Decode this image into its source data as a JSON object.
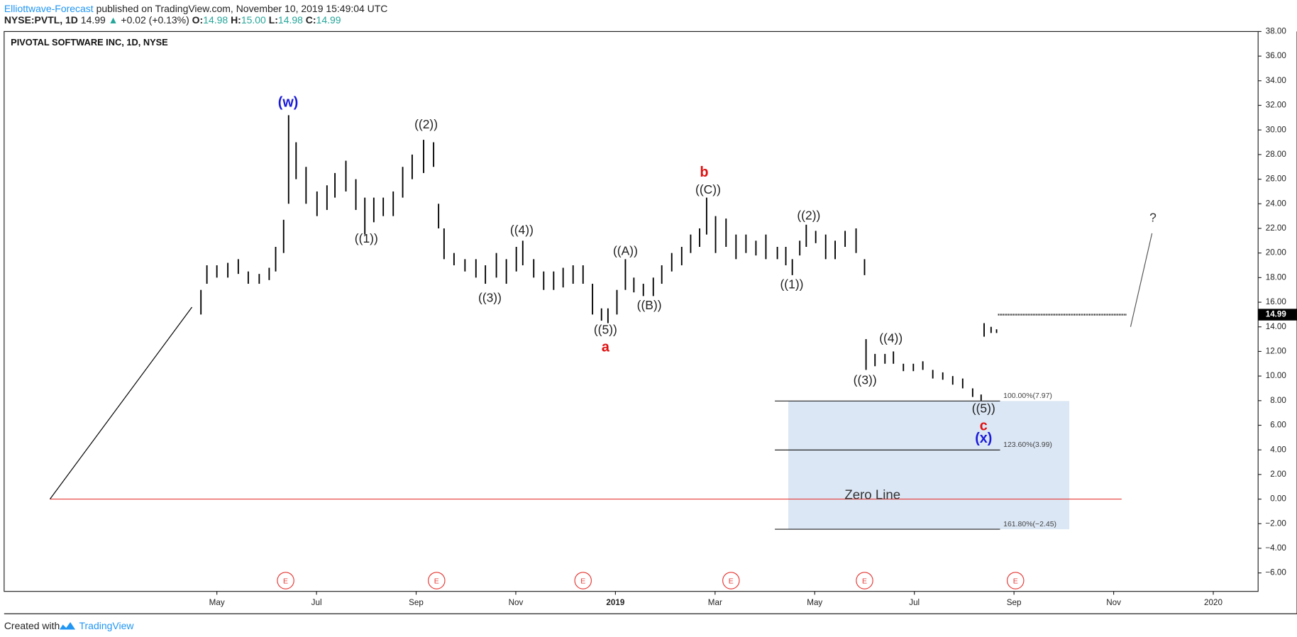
{
  "header": {
    "publisher": "Elliottwave-Forecast",
    "published": "published on TradingView.com, November 10, 2019 15:49:04 UTC",
    "symbol": "NYSE:PVTL, 1D",
    "last": "14.99",
    "arrow": "▲",
    "change": "+0.02 (+0.13%)",
    "o_label": "O:",
    "o": "14.98",
    "h_label": "H:",
    "h": "15.00",
    "l_label": "L:",
    "l": "14.98",
    "c_label": "C:",
    "c": "14.99"
  },
  "footer": {
    "created": "Created with",
    "brand": "TradingView"
  },
  "chart_data": {
    "type": "ohlc",
    "title": "PIVOTAL SOFTWARE INC, 1D, NYSE",
    "color": "#000000",
    "x": [
      3.68,
      3.8,
      4.0,
      4.22,
      4.43,
      4.63,
      4.85,
      5.05,
      5.18,
      5.34,
      5.44,
      5.59,
      5.79,
      6.01,
      6.21,
      6.37,
      6.59,
      6.79,
      6.97,
      7.15,
      7.34,
      7.54,
      7.73,
      7.92,
      8.15,
      8.35,
      8.45,
      8.56,
      8.76,
      8.98,
      9.2,
      9.39,
      9.61,
      9.81,
      10.01,
      10.14,
      10.36,
      10.56,
      10.76,
      10.95,
      11.15,
      11.35,
      11.54,
      11.72,
      11.85,
      12.03,
      12.2,
      12.37,
      12.56,
      12.76,
      12.93,
      13.13,
      13.33,
      13.51,
      13.69,
      13.83,
      14.01,
      14.22,
      14.42,
      14.62,
      14.82,
      15.02,
      15.25,
      15.42,
      15.55,
      15.7,
      15.83,
      16.02,
      16.22,
      16.41,
      16.61,
      16.83,
      17.0,
      17.03,
      17.21,
      17.41,
      17.58,
      17.78,
      17.98,
      18.17,
      18.37,
      18.57,
      18.77,
      18.97,
      19.17,
      19.34,
      19.4,
      19.54,
      19.65
    ],
    "high": [
      17,
      19,
      19,
      19.2,
      19.5,
      18.5,
      18.3,
      18.8,
      20.5,
      22.7,
      31.2,
      29,
      27,
      25,
      25.5,
      26.5,
      27.5,
      26,
      24.5,
      24.5,
      24.5,
      25,
      27,
      28,
      29.2,
      29,
      24,
      22,
      20,
      19.5,
      19.5,
      19,
      20,
      19.5,
      20.5,
      21,
      19.5,
      18.5,
      18.5,
      18.8,
      19,
      19,
      17.5,
      15.5,
      15.5,
      17,
      19.5,
      18,
      17.5,
      18,
      19,
      20,
      20.5,
      21.5,
      22,
      24.5,
      23,
      22.8,
      21.5,
      21.5,
      21,
      21.5,
      20.5,
      20.5,
      19.5,
      21,
      22.3,
      21.8,
      21.5,
      21,
      21.8,
      22,
      19.5,
      13,
      11.8,
      11.8,
      12,
      11,
      11,
      11.2,
      10.5,
      10.3,
      10,
      9.8,
      9,
      8.5,
      14.3,
      14,
      13.8
    ],
    "low": [
      15,
      17.5,
      18,
      18,
      18.3,
      17.5,
      17.5,
      17.8,
      18.5,
      20,
      24,
      26,
      24,
      23,
      23.5,
      24.5,
      25,
      23.5,
      21.5,
      22.5,
      23,
      23,
      24.5,
      26,
      26.5,
      27,
      22,
      19.5,
      19,
      18.5,
      18,
      17.5,
      18,
      17.5,
      18.5,
      19,
      18,
      17,
      17,
      17.2,
      17.5,
      17.5,
      15,
      14.5,
      14.3,
      15,
      17,
      16.8,
      16.5,
      16.5,
      17.5,
      18.5,
      19,
      20,
      20.5,
      21.5,
      20,
      20.5,
      19.5,
      20,
      19.8,
      19.5,
      19.5,
      19,
      18.2,
      19.8,
      20.5,
      20.8,
      19.5,
      19.5,
      20.5,
      20,
      18.2,
      10.5,
      10.8,
      11,
      11,
      10.4,
      10.4,
      10.5,
      9.8,
      9.7,
      9.3,
      9,
      8.3,
      8,
      13.2,
      13.5,
      13.5
    ],
    "xlim": [
      -0.27,
      24.9
    ],
    "ylim": [
      -7.5,
      38
    ],
    "xticks": [
      {
        "value": 4,
        "label": "May"
      },
      {
        "value": 6,
        "label": "Jul"
      },
      {
        "value": 8,
        "label": "Sep"
      },
      {
        "value": 10,
        "label": "Nov"
      },
      {
        "value": 12,
        "label": "2019"
      },
      {
        "value": 14,
        "label": "Mar"
      },
      {
        "value": 16,
        "label": "May"
      },
      {
        "value": 18,
        "label": "Jul"
      },
      {
        "value": 20,
        "label": "Sep"
      },
      {
        "value": 22,
        "label": "Nov"
      },
      {
        "value": 24,
        "label": "2020"
      }
    ],
    "yticks": [
      {
        "value": 38,
        "label": "38.00"
      },
      {
        "value": 36,
        "label": "36.00"
      },
      {
        "value": 34,
        "label": "34.00"
      },
      {
        "value": 32,
        "label": "32.00"
      },
      {
        "value": 30,
        "label": "30.00"
      },
      {
        "value": 28,
        "label": "28.00"
      },
      {
        "value": 26,
        "label": "26.00"
      },
      {
        "value": 24,
        "label": "24.00"
      },
      {
        "value": 22,
        "label": "22.00"
      },
      {
        "value": 20,
        "label": "20.00"
      },
      {
        "value": 18,
        "label": "18.00"
      },
      {
        "value": 16,
        "label": "16.00"
      },
      {
        "value": 14,
        "label": "14.00"
      },
      {
        "value": 12,
        "label": "12.00"
      },
      {
        "value": 10,
        "label": "10.00"
      },
      {
        "value": 8,
        "label": "8.00"
      },
      {
        "value": 6,
        "label": "6.00"
      },
      {
        "value": 4,
        "label": "4.00"
      },
      {
        "value": 2,
        "label": "2.00"
      },
      {
        "value": 0,
        "label": "0.00"
      },
      {
        "value": -2,
        "label": "−2.00"
      },
      {
        "value": -4,
        "label": "−4.00"
      },
      {
        "value": -6,
        "label": "−6.00"
      }
    ],
    "last_price": {
      "value": 14.99,
      "label": "14.99",
      "x": [
        19.68,
        22.26
      ]
    },
    "annotations": [
      {
        "text": "(w)",
        "x": 5.43,
        "y": 32.2,
        "color": "#1a1adb"
      },
      {
        "text": "((2))",
        "x": 8.2,
        "y": 30.4,
        "color": "#222222"
      },
      {
        "text": "((1))",
        "x": 7.0,
        "y": 21.1,
        "color": "#222222"
      },
      {
        "text": "((4))",
        "x": 10.12,
        "y": 21.8,
        "color": "#222222"
      },
      {
        "text": "((3))",
        "x": 9.48,
        "y": 16.3,
        "color": "#222222"
      },
      {
        "text": "((5))",
        "x": 11.8,
        "y": 13.7,
        "color": "#222222"
      },
      {
        "text": "a",
        "x": 11.8,
        "y": 12.3,
        "color": "#e01010"
      },
      {
        "text": "((A))",
        "x": 12.2,
        "y": 20.1,
        "color": "#222222"
      },
      {
        "text": "((B))",
        "x": 12.68,
        "y": 15.7,
        "color": "#222222"
      },
      {
        "text": "b",
        "x": 13.78,
        "y": 26.5,
        "color": "#e01010"
      },
      {
        "text": "((C))",
        "x": 13.86,
        "y": 25.1,
        "color": "#222222"
      },
      {
        "text": "((2))",
        "x": 15.88,
        "y": 23.0,
        "color": "#222222"
      },
      {
        "text": "((1))",
        "x": 15.54,
        "y": 17.4,
        "color": "#222222"
      },
      {
        "text": "((4))",
        "x": 17.53,
        "y": 13.0,
        "color": "#222222"
      },
      {
        "text": "((3))",
        "x": 17.01,
        "y": 9.6,
        "color": "#222222"
      },
      {
        "text": "((5))",
        "x": 19.39,
        "y": 7.3,
        "color": "#222222"
      },
      {
        "text": "c",
        "x": 19.39,
        "y": 5.9,
        "color": "#e01010"
      },
      {
        "text": "(x)",
        "x": 19.39,
        "y": 4.9,
        "color": "#1a1adb"
      },
      {
        "text": "?",
        "x": 22.79,
        "y": 22.8,
        "color": "#333333"
      }
    ],
    "fib_box": {
      "x": [
        15.47,
        21.11
      ],
      "color": "#dbe7f5"
    },
    "fib_levels": [
      {
        "value": 7.97,
        "label": "100.00%(7.97)"
      },
      {
        "value": 3.99,
        "label": "123.60%(3.99)"
      },
      {
        "value": -2.45,
        "label": "161.80%(−2.45)"
      }
    ],
    "fib_x": [
      15.2,
      19.72
    ],
    "zero_line": {
      "value": 0,
      "x": [
        0.65,
        22.16
      ],
      "color": "#e53935",
      "label": "Zero Line",
      "label_x": 17.16,
      "label_y": 0.3
    },
    "trend_lines": [
      {
        "x": [
          0.65,
          3.5
        ],
        "y": [
          0,
          15.6
        ],
        "color": "#000000"
      },
      {
        "x": [
          22.34,
          22.77
        ],
        "y": [
          14.0,
          21.6
        ],
        "color": "#555555"
      }
    ],
    "earnings": [
      {
        "x": 5.38,
        "label": "E"
      },
      {
        "x": 8.41,
        "label": "E"
      },
      {
        "x": 11.35,
        "label": "E"
      },
      {
        "x": 14.32,
        "label": "E"
      },
      {
        "x": 17.0,
        "label": "E"
      },
      {
        "x": 20.03,
        "label": "E"
      }
    ]
  }
}
